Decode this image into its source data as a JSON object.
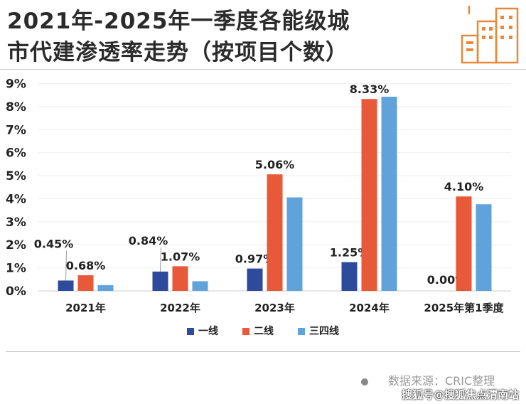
{
  "title_line1": "2021年-2025年一季度各能级城",
  "title_line2": "市代建渗透率走势（按项目个数）",
  "source": "数据来源：CRIC整理",
  "watermark": "搜狐号@搜狐焦点渭南站",
  "chart_data": {
    "type": "bar",
    "title": "2021年-2025年一季度各能级城市代建渗透率走势（按项目个数）",
    "categories": [
      "2021年",
      "2022年",
      "2023年",
      "2024年",
      "2025年第1季度"
    ],
    "series": [
      {
        "name": "一线",
        "color": "#2e4a9a",
        "values": [
          0.45,
          0.84,
          0.97,
          1.25,
          0.0
        ],
        "labels": [
          "0.45%",
          "0.84%",
          "0.97%",
          "1.25%",
          "0.00%"
        ]
      },
      {
        "name": "二线",
        "color": "#e8593a",
        "values": [
          0.68,
          1.07,
          5.06,
          8.33,
          4.1
        ],
        "labels": [
          "0.68%",
          "1.07%",
          "5.06%",
          "8.33%",
          "4.10%"
        ]
      },
      {
        "name": "三四线",
        "color": "#5fa3da",
        "values": [
          0.25,
          0.42,
          4.06,
          8.43,
          3.76
        ],
        "labels": [
          null,
          null,
          null,
          null,
          null
        ]
      }
    ],
    "yticks": [
      "0%",
      "1%",
      "2%",
      "3%",
      "4%",
      "5%",
      "6%",
      "7%",
      "8%",
      "9%"
    ],
    "ylim": [
      0,
      9
    ],
    "grid": true,
    "legend": "bottom"
  }
}
